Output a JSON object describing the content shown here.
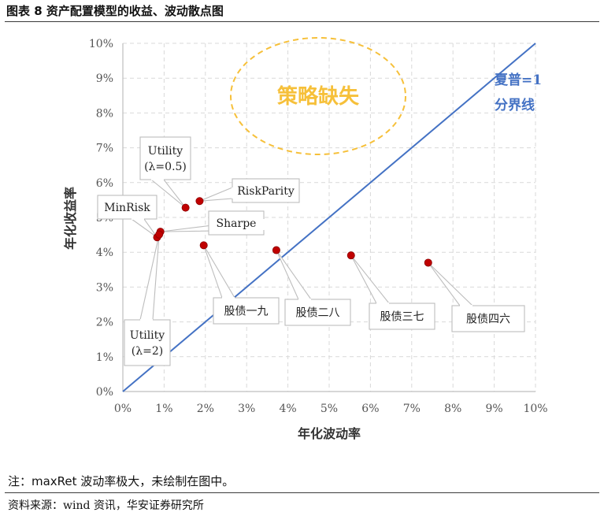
{
  "figure_title": "图表 8  资产配置模型的收益、波动散点图",
  "note": "注：maxRet 波动率极大，未绘制在图中。",
  "source": "资料来源：wind 资讯，华安证券研究所",
  "colors": {
    "point": "#c00000",
    "diag": "#4472c4",
    "diag_label": "#4472c4",
    "missing": "#f6c03a",
    "grid": "#d9d9d9",
    "axis": "#bfbfbf"
  },
  "chart_data": {
    "type": "scatter",
    "xlabel": "年化波动率",
    "ylabel": "年化收益率",
    "xlim": [
      0,
      0.1
    ],
    "ylim": [
      0,
      0.1
    ],
    "x_ticks": [
      "0%",
      "1%",
      "2%",
      "3%",
      "4%",
      "5%",
      "6%",
      "7%",
      "8%",
      "9%",
      "10%"
    ],
    "y_ticks": [
      "0%",
      "1%",
      "2%",
      "3%",
      "4%",
      "5%",
      "6%",
      "7%",
      "8%",
      "9%",
      "10%"
    ],
    "grid": "dashed both",
    "points": [
      {
        "label_lines": [
          "Utility",
          "(λ=0.5)"
        ],
        "x": 0.0152,
        "y": 0.0528
      },
      {
        "label_lines": [
          "RiskParity"
        ],
        "x": 0.0186,
        "y": 0.0547
      },
      {
        "label_lines": [
          "MinRisk"
        ],
        "x": 0.0083,
        "y": 0.0443
      },
      {
        "label_lines": [
          "Sharpe"
        ],
        "x": 0.0091,
        "y": 0.0459
      },
      {
        "label_lines": [
          "Utility",
          "(λ=2)"
        ],
        "x": 0.0088,
        "y": 0.0451
      },
      {
        "label_lines": [
          "股债一九"
        ],
        "x": 0.0196,
        "y": 0.042
      },
      {
        "label_lines": [
          "股债二八"
        ],
        "x": 0.0372,
        "y": 0.0406
      },
      {
        "label_lines": [
          "股债三七"
        ],
        "x": 0.0553,
        "y": 0.0391
      },
      {
        "label_lines": [
          "股债四六"
        ],
        "x": 0.074,
        "y": 0.037
      }
    ],
    "reference_line": {
      "label_lines": [
        "夏普=1",
        "分界线"
      ],
      "from": [
        0,
        0
      ],
      "to": [
        0.1,
        0.1
      ]
    },
    "annotation": "策略缺失"
  }
}
